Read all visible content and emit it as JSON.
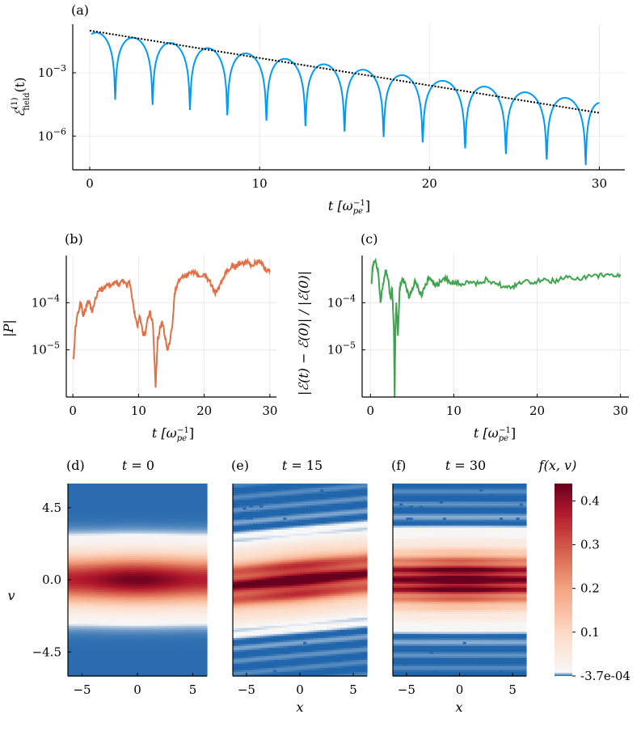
{
  "chart_data": [
    {
      "panel": "(a)",
      "type": "line",
      "ylabel": "ℰ(1)field(t)",
      "ylabel_main": "ℰ",
      "ylabel_sup": "(1)",
      "ylabel_sub": "field",
      "ylabel_tail": "(t)",
      "xlabel": "t [ω",
      "xlabel_sub": "pe",
      "xlabel_sup": "−1",
      "xlabel_end": "]",
      "x_ticks": [
        "0",
        "10",
        "20",
        "30"
      ],
      "y_ticks": [
        "10−3",
        "10−6"
      ],
      "y_tick_base": "10",
      "y_tick_exps": [
        "−3",
        "−6"
      ],
      "xlim": [
        -1,
        31.5
      ],
      "ylog_lim": [
        -7.6,
        -0.7
      ],
      "y_scale": "log",
      "grid": true,
      "series": [
        {
          "color": "#009af9",
          "style": "solid",
          "decay_exponent_per_unit": -0.112,
          "start_log10": -1.05,
          "oscillation_zero_times": [
            1.5,
            3.7,
            5.9,
            8.1,
            10.4,
            12.7,
            15.0,
            17.3,
            19.6,
            22.1,
            24.5,
            26.9,
            29.2
          ],
          "x_range": [
            0.1,
            30
          ]
        },
        {
          "color": "#000000",
          "style": "dotted",
          "x": [
            0,
            30
          ],
          "log10_y": [
            -1.0,
            -4.9
          ]
        }
      ]
    },
    {
      "panel": "(b)",
      "type": "line",
      "ylabel": "|P|",
      "xlabel": "t [ω",
      "xlabel_sub": "pe",
      "xlabel_sup": "−1",
      "xlabel_end": "]",
      "x_ticks": [
        "0",
        "10",
        "20",
        "30"
      ],
      "y_ticks": [
        "10−4",
        "10−5"
      ],
      "y_tick_base": "10",
      "y_tick_exps": [
        "−4",
        "−5"
      ],
      "xlim": [
        -1,
        31
      ],
      "ylog_lim": [
        -6.0,
        -3.0
      ],
      "y_scale": "log",
      "grid": true,
      "series": [
        {
          "color": "#e26f46",
          "x": [
            0.1,
            0.4,
            0.8,
            1.2,
            1.6,
            2.0,
            2.4,
            2.9,
            3.4,
            4.0,
            4.6,
            5.2,
            5.8,
            6.4,
            7.0,
            7.6,
            8.2,
            8.6,
            9.0,
            9.4,
            9.8,
            10.2,
            10.6,
            11.0,
            11.4,
            11.8,
            12.2,
            12.6,
            12.9,
            13.2,
            13.6,
            14.0,
            14.4,
            14.8,
            15.2,
            15.5,
            15.9,
            16.4,
            17.0,
            17.6,
            18.2,
            18.8,
            19.4,
            20.0,
            20.6,
            21.2,
            21.6,
            22.0,
            22.5,
            23.0,
            23.6,
            24.2,
            24.8,
            25.4,
            26.0,
            26.6,
            27.2,
            27.8,
            28.4,
            29.0,
            29.5,
            30.0
          ],
          "log10_y": [
            -5.2,
            -4.5,
            -4.2,
            -4.0,
            -4.3,
            -4.1,
            -3.95,
            -4.2,
            -3.9,
            -3.75,
            -3.7,
            -3.6,
            -3.65,
            -3.55,
            -3.6,
            -3.5,
            -3.65,
            -3.55,
            -3.9,
            -4.2,
            -4.5,
            -4.3,
            -4.6,
            -4.7,
            -4.3,
            -4.2,
            -4.5,
            -5.8,
            -4.8,
            -4.6,
            -4.4,
            -4.7,
            -5.0,
            -4.8,
            -4.4,
            -3.8,
            -3.6,
            -3.5,
            -3.45,
            -3.4,
            -3.35,
            -3.4,
            -3.45,
            -3.4,
            -3.5,
            -3.65,
            -3.8,
            -3.75,
            -3.6,
            -3.45,
            -3.3,
            -3.2,
            -3.25,
            -3.15,
            -3.2,
            -3.1,
            -3.2,
            -3.15,
            -3.1,
            -3.2,
            -3.35,
            -3.3
          ]
        }
      ]
    },
    {
      "panel": "(c)",
      "type": "line",
      "ylabel": "|ℰ(t) − ℰ(0)| / |ℰ(0)|",
      "xlabel": "t [ω",
      "xlabel_sub": "pe",
      "xlabel_sup": "−1",
      "xlabel_end": "]",
      "x_ticks": [
        "0",
        "10",
        "20",
        "30"
      ],
      "y_ticks": [
        "10−4",
        "10−5"
      ],
      "y_tick_base": "10",
      "y_tick_exps": [
        "−4",
        "−5"
      ],
      "xlim": [
        -1,
        31
      ],
      "ylog_lim": [
        -6.0,
        -3.0
      ],
      "y_scale": "log",
      "grid": true,
      "series": [
        {
          "color": "#3ea44e",
          "x": [
            0.1,
            0.3,
            0.6,
            0.9,
            1.2,
            1.5,
            1.8,
            2.1,
            2.4,
            2.6,
            2.8,
            2.9,
            3.0,
            3.1,
            3.3,
            3.5,
            3.8,
            4.2,
            4.6,
            5.0,
            5.4,
            5.8,
            6.2,
            6.6,
            7.0,
            7.4,
            7.8,
            8.4,
            9.0,
            9.6,
            10.2,
            11.0,
            12.0,
            13.0,
            14.0,
            15.0,
            16.0,
            16.8,
            17.6,
            18.4,
            19.2,
            20.0,
            21.0,
            22.0,
            23.0,
            24.0,
            25.0,
            26.0,
            27.0,
            28.0,
            29.0,
            30.0
          ],
          "log10_y": [
            -3.6,
            -3.2,
            -3.1,
            -3.3,
            -4.0,
            -3.6,
            -3.3,
            -3.5,
            -3.9,
            -3.7,
            -4.5,
            -6.0,
            -4.5,
            -4.0,
            -4.7,
            -3.7,
            -3.5,
            -3.6,
            -3.9,
            -3.7,
            -3.55,
            -3.75,
            -3.85,
            -3.6,
            -3.5,
            -3.55,
            -3.65,
            -3.55,
            -3.45,
            -3.6,
            -3.55,
            -3.6,
            -3.55,
            -3.6,
            -3.5,
            -3.6,
            -3.65,
            -3.7,
            -3.6,
            -3.55,
            -3.6,
            -3.55,
            -3.5,
            -3.55,
            -3.5,
            -3.45,
            -3.5,
            -3.45,
            -3.4,
            -3.45,
            -3.4,
            -3.4
          ]
        }
      ]
    },
    {
      "panel": "(d)",
      "type": "heatmap",
      "title": "t = 0",
      "title_var": "t",
      "title_val": " = 0",
      "ylabel": "v",
      "x_ticks": [
        "−5",
        "0",
        "5"
      ],
      "y_ticks": [
        "4.5",
        "0.0",
        "−4.5"
      ],
      "xlim": [
        -6.28,
        6.28
      ],
      "ylim": [
        -6,
        6
      ],
      "peak": 0.4,
      "v_width": 1.0,
      "stripes": 0,
      "tilt": 0,
      "noise": false
    },
    {
      "panel": "(e)",
      "type": "heatmap",
      "title": "t = 15",
      "title_var": "t",
      "title_val": " = 15",
      "xlabel": "x",
      "x_ticks": [
        "−5",
        "0",
        "5"
      ],
      "xlim": [
        -6.28,
        6.28
      ],
      "ylim": [
        -6,
        6
      ],
      "peak": 0.42,
      "v_width": 1.05,
      "stripes": 1,
      "tilt": 0.06,
      "noise": true
    },
    {
      "panel": "(f)",
      "type": "heatmap",
      "title": "t = 30",
      "title_var": "t",
      "title_val": " = 30",
      "xlabel": "x",
      "x_ticks": [
        "−5",
        "0",
        "5"
      ],
      "xlim": [
        -6.28,
        6.28
      ],
      "ylim": [
        -6,
        6
      ],
      "peak": 0.44,
      "v_width": 1.1,
      "stripes": 2,
      "tilt": 0.0,
      "noise": true
    }
  ],
  "colorbar": {
    "label": "f(x, v)",
    "ticks": [
      "0.4",
      "0.3",
      "0.2",
      "0.1",
      "-3.7e-04"
    ],
    "tick_values": [
      0.4,
      0.3,
      0.2,
      0.1,
      -0.00037
    ],
    "range": [
      -0.00037,
      0.44
    ],
    "colors": [
      "#2166ac",
      "#f7f7f7",
      "#fddbc7",
      "#f4a582",
      "#d6604d",
      "#b2182b",
      "#67001f"
    ]
  }
}
